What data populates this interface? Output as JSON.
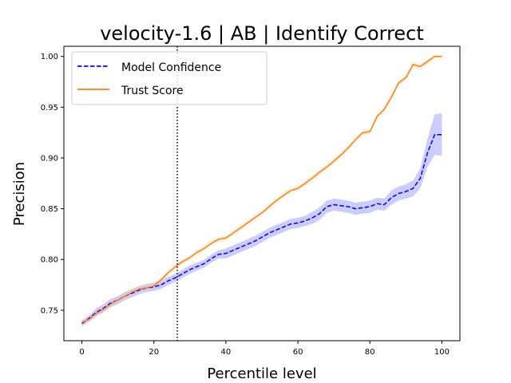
{
  "chart_data": {
    "type": "line",
    "title": "velocity-1.6 | AB | Identify Correct",
    "xlabel": "Percentile level",
    "ylabel": "Precision",
    "xlim": [
      -5,
      105
    ],
    "ylim": [
      0.72,
      1.01
    ],
    "xticks": [
      0,
      20,
      40,
      60,
      80,
      100
    ],
    "yticks": [
      0.75,
      0.8,
      0.85,
      0.9,
      0.95,
      1.0
    ],
    "ytick_labels": [
      "0.75",
      "0.80",
      "0.85",
      "0.90",
      "0.95",
      "1.00"
    ],
    "vline_x": 26.5,
    "legend_position": "upper-left",
    "grid": false,
    "series": [
      {
        "name": "Model Confidence",
        "color": "#0000ff",
        "band_color": "#0000ff",
        "style": "dashed",
        "x": [
          0,
          2,
          4,
          6,
          8,
          10,
          12,
          14,
          16,
          18,
          20,
          22,
          24,
          26,
          28,
          30,
          32,
          34,
          36,
          38,
          40,
          42,
          44,
          46,
          48,
          50,
          52,
          54,
          56,
          58,
          60,
          62,
          64,
          66,
          68,
          70,
          72,
          74,
          76,
          78,
          80,
          82,
          84,
          86,
          88,
          90,
          92,
          94,
          96,
          98,
          100
        ],
        "y": [
          0.737,
          0.742,
          0.748,
          0.752,
          0.757,
          0.76,
          0.764,
          0.767,
          0.77,
          0.772,
          0.773,
          0.775,
          0.779,
          0.782,
          0.786,
          0.79,
          0.793,
          0.796,
          0.801,
          0.805,
          0.806,
          0.809,
          0.812,
          0.815,
          0.818,
          0.822,
          0.826,
          0.829,
          0.832,
          0.835,
          0.836,
          0.838,
          0.841,
          0.845,
          0.852,
          0.854,
          0.853,
          0.852,
          0.85,
          0.851,
          0.852,
          0.855,
          0.854,
          0.861,
          0.865,
          0.867,
          0.87,
          0.88,
          0.905,
          0.923,
          0.923
        ],
        "band": [
          0.003,
          0.003,
          0.004,
          0.004,
          0.004,
          0.004,
          0.004,
          0.004,
          0.004,
          0.004,
          0.004,
          0.004,
          0.004,
          0.004,
          0.004,
          0.004,
          0.004,
          0.004,
          0.004,
          0.004,
          0.005,
          0.005,
          0.005,
          0.005,
          0.005,
          0.005,
          0.005,
          0.005,
          0.005,
          0.005,
          0.005,
          0.005,
          0.006,
          0.006,
          0.006,
          0.006,
          0.006,
          0.006,
          0.006,
          0.006,
          0.006,
          0.006,
          0.006,
          0.007,
          0.007,
          0.007,
          0.008,
          0.01,
          0.014,
          0.02,
          0.021
        ]
      },
      {
        "name": "Trust Score",
        "color": "#ff7f0e",
        "band_color": "#ffbf6e",
        "style": "solid",
        "x": [
          0,
          2,
          4,
          6,
          8,
          10,
          12,
          14,
          16,
          18,
          20,
          22,
          24,
          26,
          28,
          30,
          32,
          34,
          36,
          38,
          40,
          42,
          44,
          46,
          48,
          50,
          52,
          54,
          56,
          58,
          60,
          62,
          64,
          66,
          68,
          70,
          72,
          74,
          76,
          78,
          80,
          82,
          84,
          86,
          88,
          90,
          92,
          94,
          96,
          98,
          100
        ],
        "y": [
          0.738,
          0.741,
          0.747,
          0.751,
          0.756,
          0.76,
          0.764,
          0.768,
          0.771,
          0.772,
          0.774,
          0.78,
          0.787,
          0.793,
          0.798,
          0.802,
          0.807,
          0.811,
          0.816,
          0.82,
          0.821,
          0.826,
          0.831,
          0.836,
          0.841,
          0.846,
          0.852,
          0.858,
          0.863,
          0.868,
          0.87,
          0.875,
          0.88,
          0.886,
          0.891,
          0.897,
          0.903,
          0.91,
          0.918,
          0.925,
          0.926,
          0.941,
          0.948,
          0.96,
          0.974,
          0.979,
          0.992,
          0.99,
          0.995,
          1.0,
          1.0
        ],
        "band": [
          0.003,
          0.003,
          0.003,
          0.003,
          0.003,
          0.003,
          0.003,
          0.003,
          0.003,
          0.003,
          0.003,
          0.003,
          0.003,
          0.003,
          0.003,
          0.003,
          0.003,
          0.003,
          0.003,
          0.003,
          0.003,
          0.003,
          0.003,
          0.003,
          0.003,
          0.003,
          0.003,
          0.003,
          0.003,
          0.003,
          0.003,
          0.003,
          0.003,
          0.003,
          0.003,
          0.003,
          0.003,
          0.003,
          0.003,
          0.003,
          0.003,
          0.003,
          0.003,
          0.003,
          0.003,
          0.003,
          0.003,
          0.003,
          0.003,
          0.002,
          0.002
        ]
      }
    ]
  }
}
